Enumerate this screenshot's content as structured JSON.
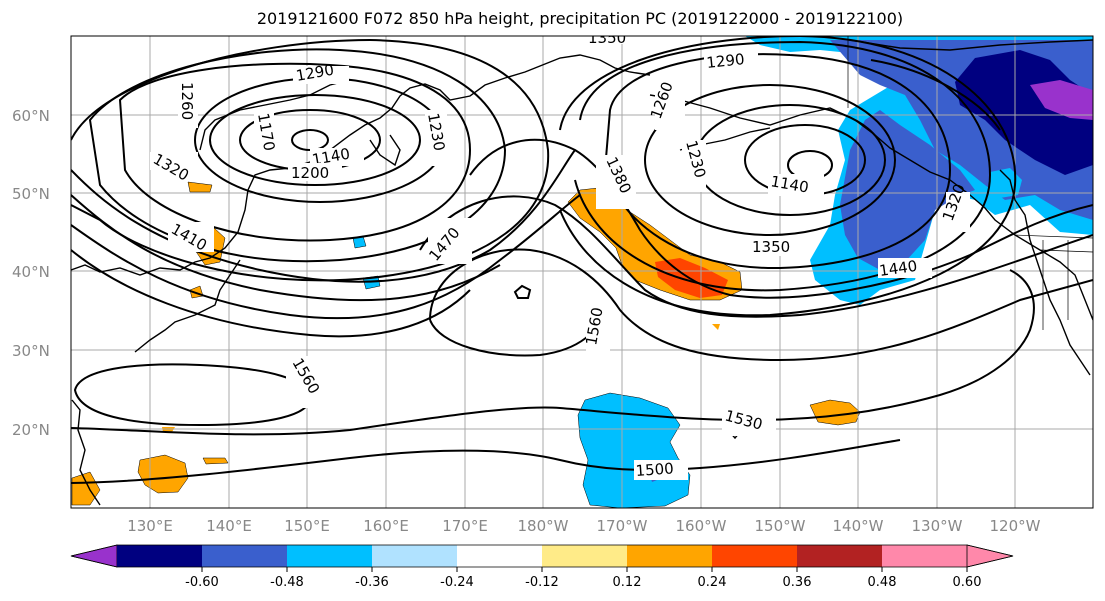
{
  "title": "2019121600 F072 850 hPa height, precipitation PC (2019122000 - 2019122100)",
  "lat_labels": [
    "60°N",
    "50°N",
    "40°N",
    "30°N",
    "20°N"
  ],
  "lon_labels": [
    "130°E",
    "140°E",
    "150°E",
    "160°E",
    "170°E",
    "180°W",
    "170°W",
    "160°W",
    "150°W",
    "140°W",
    "130°W",
    "120°W"
  ],
  "contour_labels": [
    "1290",
    "1260",
    "1170",
    "1140",
    "1200",
    "1320",
    "1230",
    "1290",
    "1260",
    "1230",
    "1140",
    "1350",
    "1440",
    "1380",
    "1470",
    "1410",
    "1560",
    "1560",
    "1530",
    "1500",
    "1350",
    "1320"
  ],
  "colorbar": {
    "colors": [
      "#9932cc",
      "#000080",
      "#3a5fcd",
      "#00bfff",
      "#b0e2ff",
      "#ffffff",
      "#ffeb88",
      "#ffa500",
      "#ff4500",
      "#b22222",
      "#ff88aa"
    ],
    "tick_labels": [
      "-0.60",
      "-0.48",
      "-0.36",
      "-0.24",
      "-0.12",
      "0.12",
      "0.24",
      "0.36",
      "0.48",
      "0.60"
    ]
  }
}
